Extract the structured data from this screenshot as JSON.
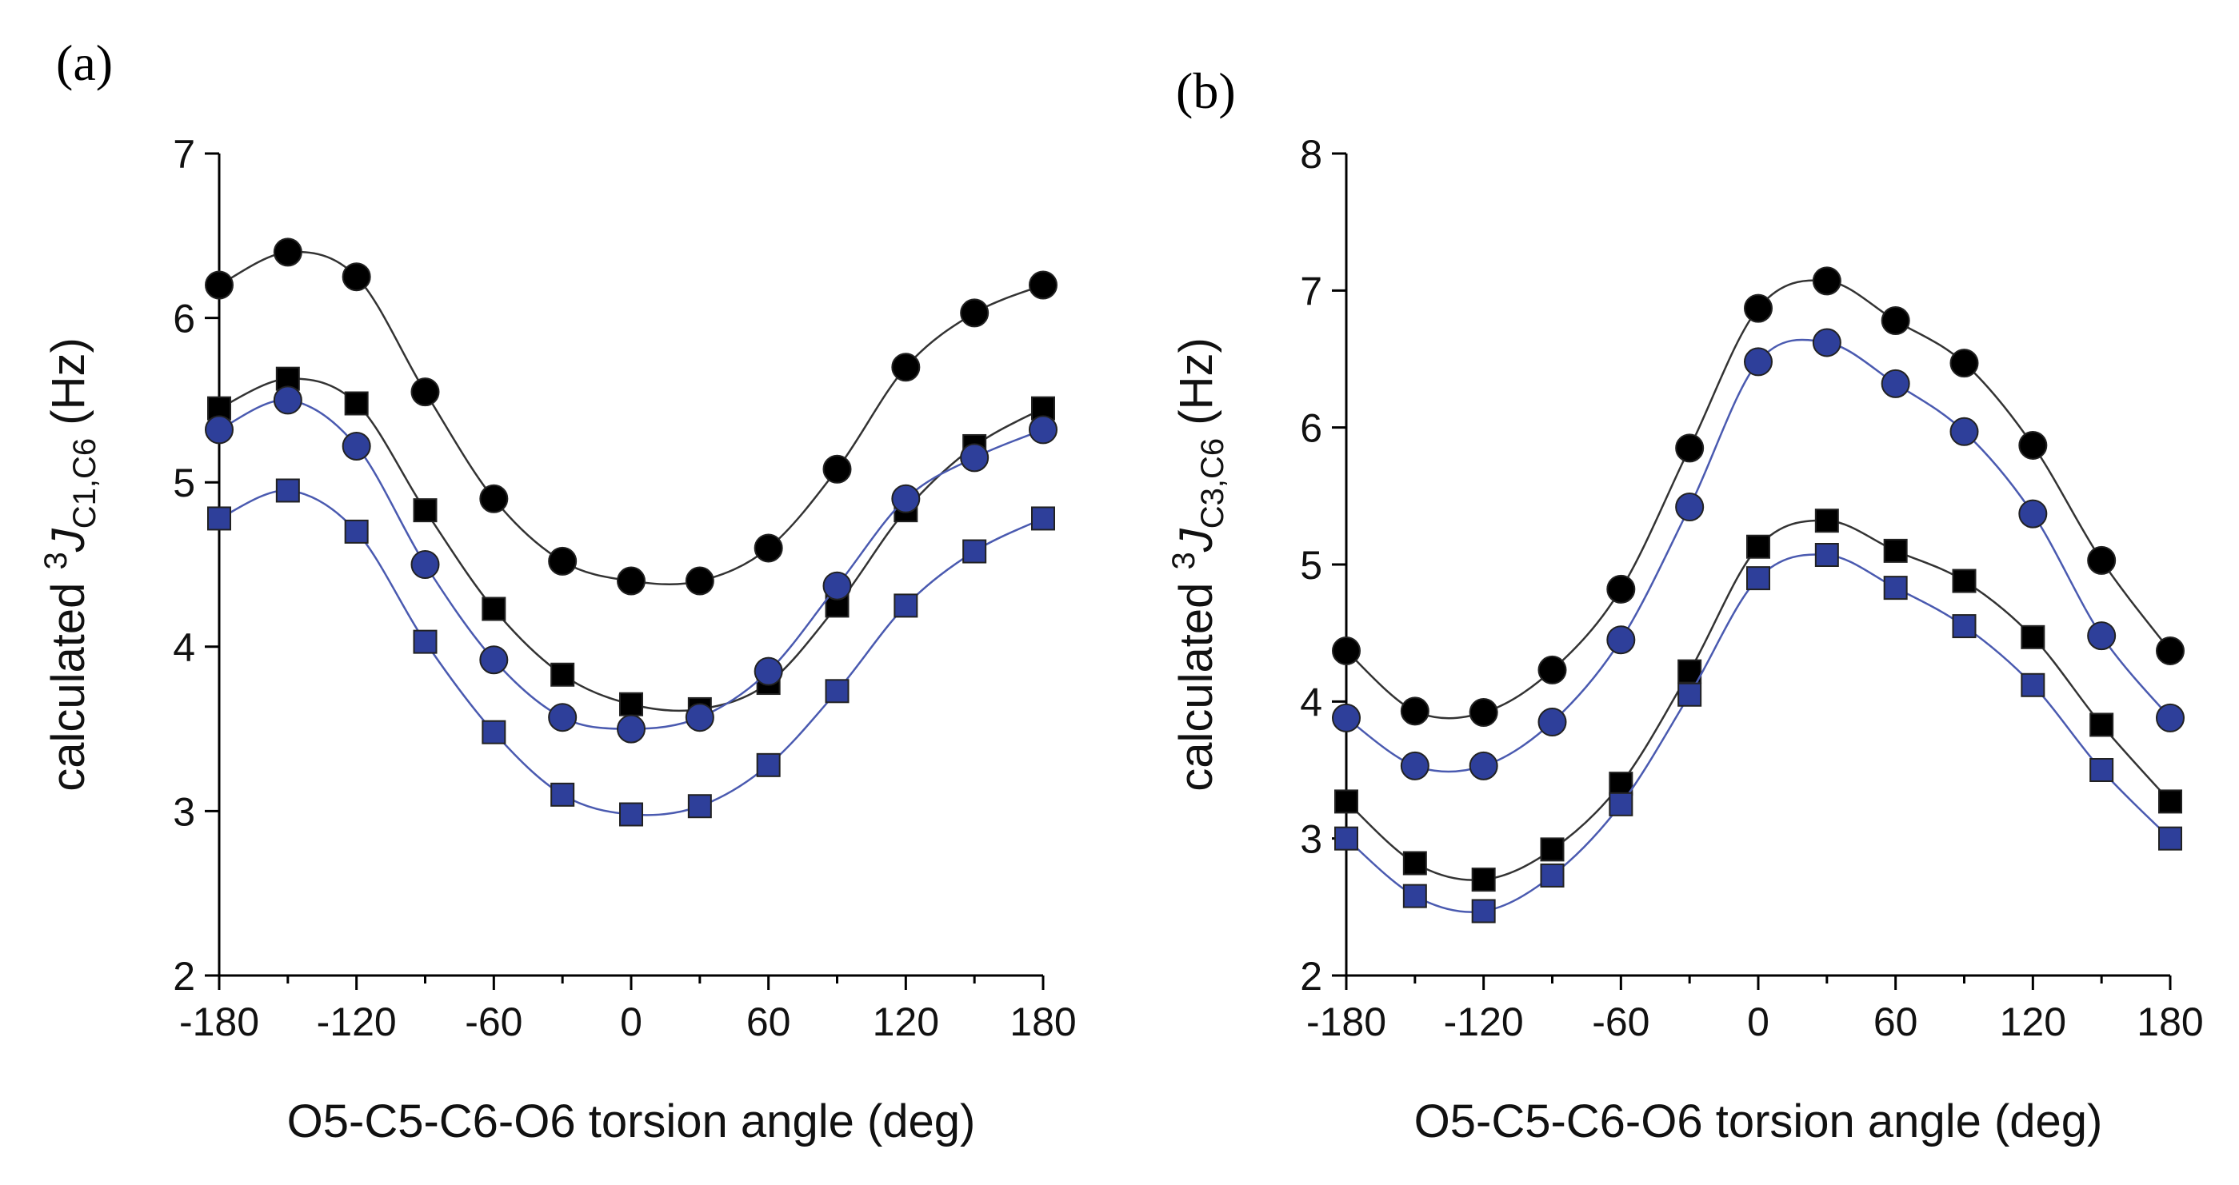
{
  "chart_data": [
    {
      "type": "line",
      "panel_label": "(a)",
      "xlabel": "O5-C5-C6-O6 torsion angle (deg)",
      "ylabel": {
        "prefix": "calculated ",
        "sup": "3",
        "italic": "J",
        "sub": "C1,C6",
        "suffix": " (Hz)"
      },
      "xlim": [
        -180,
        180
      ],
      "ylim": [
        2,
        7
      ],
      "xticks": [
        -180,
        -120,
        -60,
        0,
        60,
        120,
        180
      ],
      "yticks": [
        2,
        3,
        4,
        5,
        6,
        7
      ],
      "x": [
        -180,
        -150,
        -120,
        -90,
        -60,
        -30,
        0,
        30,
        60,
        90,
        120,
        150,
        180
      ],
      "series": [
        {
          "name": "black circles",
          "marker": "circle",
          "color": "#000000",
          "line_color": "#333333",
          "values": [
            6.2,
            6.4,
            6.25,
            5.55,
            4.9,
            4.52,
            4.4,
            4.4,
            4.6,
            5.08,
            5.7,
            6.03,
            6.2
          ]
        },
        {
          "name": "black squares",
          "marker": "square",
          "color": "#000000",
          "line_color": "#333333",
          "values": [
            5.45,
            5.63,
            5.48,
            4.83,
            4.23,
            3.83,
            3.65,
            3.62,
            3.78,
            4.25,
            4.83,
            5.22,
            5.45
          ]
        },
        {
          "name": "blue circles",
          "marker": "circle",
          "color": "#2e3f9a",
          "line_color": "#4a5ab0",
          "values": [
            5.32,
            5.5,
            5.22,
            4.5,
            3.92,
            3.57,
            3.5,
            3.57,
            3.85,
            4.37,
            4.9,
            5.15,
            5.32
          ]
        },
        {
          "name": "blue squares",
          "marker": "square",
          "color": "#2e3f9a",
          "line_color": "#4a5ab0",
          "values": [
            4.78,
            4.95,
            4.7,
            4.03,
            3.48,
            3.1,
            2.98,
            3.03,
            3.28,
            3.73,
            4.25,
            4.58,
            4.78
          ]
        }
      ]
    },
    {
      "type": "line",
      "panel_label": "(b)",
      "xlabel": "O5-C5-C6-O6 torsion angle (deg)",
      "ylabel": {
        "prefix": "calculated ",
        "sup": "3",
        "italic": "J",
        "sub": "C3,C6",
        "suffix": " (Hz)"
      },
      "xlim": [
        -180,
        180
      ],
      "ylim": [
        2,
        8
      ],
      "xticks": [
        -180,
        -120,
        -60,
        0,
        60,
        120,
        180
      ],
      "yticks": [
        2,
        3,
        4,
        5,
        6,
        7,
        8
      ],
      "x": [
        -180,
        -150,
        -120,
        -90,
        -60,
        -30,
        0,
        30,
        60,
        90,
        120,
        150,
        180
      ],
      "series": [
        {
          "name": "black circles",
          "marker": "circle",
          "color": "#000000",
          "line_color": "#333333",
          "values": [
            4.37,
            3.93,
            3.92,
            4.23,
            4.82,
            5.85,
            6.87,
            7.07,
            6.78,
            6.47,
            5.87,
            5.03,
            4.37
          ]
        },
        {
          "name": "blue circles",
          "marker": "circle",
          "color": "#2e3f9a",
          "line_color": "#4a5ab0",
          "values": [
            3.88,
            3.53,
            3.53,
            3.85,
            4.45,
            5.42,
            6.48,
            6.62,
            6.32,
            5.97,
            5.37,
            4.48,
            3.88
          ]
        },
        {
          "name": "black squares",
          "marker": "square",
          "color": "#000000",
          "line_color": "#333333",
          "values": [
            3.27,
            2.82,
            2.7,
            2.92,
            3.4,
            4.22,
            5.13,
            5.32,
            5.1,
            4.88,
            4.47,
            3.83,
            3.27
          ]
        },
        {
          "name": "blue squares",
          "marker": "square",
          "color": "#2e3f9a",
          "line_color": "#4a5ab0",
          "values": [
            3.0,
            2.58,
            2.47,
            2.73,
            3.25,
            4.05,
            4.9,
            5.07,
            4.83,
            4.55,
            4.12,
            3.5,
            3.0
          ]
        }
      ]
    }
  ]
}
